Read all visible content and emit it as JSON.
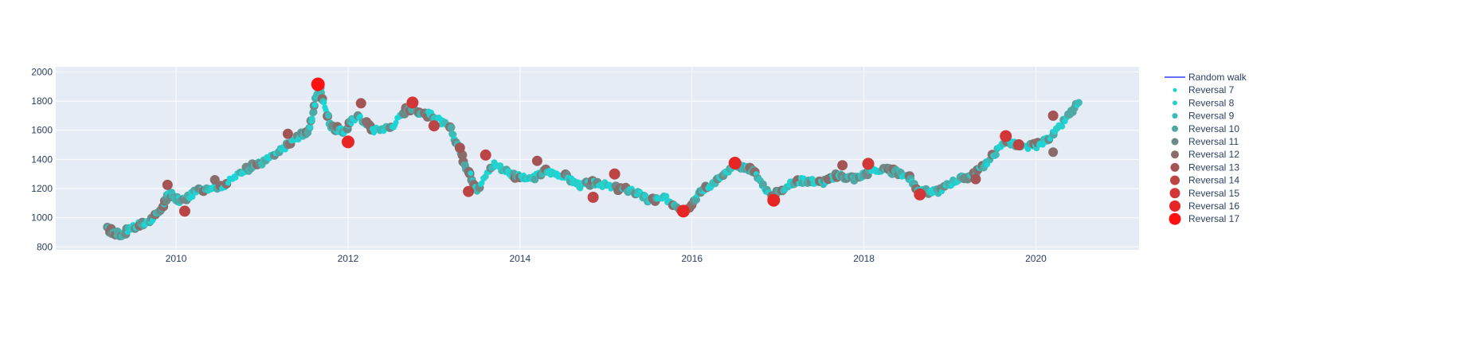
{
  "chart_data": {
    "type": "scatter",
    "title": "",
    "xlabel": "",
    "ylabel": "",
    "x_range_years": [
      2008.6,
      2021.2
    ],
    "ylim": [
      780,
      2035
    ],
    "x_ticks": [
      2010,
      2012,
      2014,
      2016,
      2018,
      2020
    ],
    "x_tick_labels": [
      "2010",
      "2012",
      "2014",
      "2016",
      "2018",
      "2020"
    ],
    "y_ticks": [
      800,
      1000,
      1200,
      1400,
      1600,
      1800,
      2000
    ],
    "y_tick_labels": [
      "800",
      "1000",
      "1200",
      "1400",
      "1600",
      "1800",
      "2000"
    ],
    "grid": true,
    "legend_position": "right",
    "colors": {
      "plot_bg": "#e5ecf6",
      "grid": "#ffffff",
      "line": "#636efa",
      "text": "#2a3f5f"
    },
    "line_series": {
      "name": "Random walk",
      "color": "#636efa",
      "x": [
        2009.2,
        2009.35,
        2009.5,
        2009.65,
        2009.8,
        2009.92,
        2010.05,
        2010.3,
        2010.55,
        2010.8,
        2011.0,
        2011.2,
        2011.4,
        2011.55,
        2011.66,
        2011.8,
        2011.95,
        2012.1,
        2012.3,
        2012.5,
        2012.7,
        2012.85,
        2013.0,
        2013.2,
        2013.35,
        2013.5,
        2013.7,
        2013.9,
        2014.1,
        2014.3,
        2014.5,
        2014.7,
        2014.9,
        2015.1,
        2015.3,
        2015.5,
        2015.7,
        2015.92,
        2016.1,
        2016.3,
        2016.52,
        2016.7,
        2016.92,
        2017.1,
        2017.3,
        2017.5,
        2017.7,
        2017.9,
        2018.1,
        2018.3,
        2018.5,
        2018.65,
        2018.85,
        2019.05,
        2019.25,
        2019.45,
        2019.65,
        2019.85,
        2020.05,
        2020.25,
        2020.5
      ],
      "y": [
        920,
        880,
        940,
        960,
        1030,
        1170,
        1110,
        1200,
        1220,
        1330,
        1380,
        1450,
        1550,
        1600,
        1920,
        1620,
        1590,
        1700,
        1600,
        1620,
        1760,
        1720,
        1700,
        1600,
        1380,
        1200,
        1370,
        1300,
        1260,
        1320,
        1290,
        1220,
        1240,
        1200,
        1190,
        1120,
        1130,
        1050,
        1180,
        1260,
        1360,
        1330,
        1140,
        1220,
        1260,
        1240,
        1290,
        1270,
        1330,
        1320,
        1290,
        1180,
        1180,
        1250,
        1290,
        1390,
        1530,
        1480,
        1500,
        1600,
        1790
      ]
    },
    "series": [
      {
        "name": "Reversal 7",
        "color": "#1bd6d6",
        "size": 7
      },
      {
        "name": "Reversal 8",
        "color": "#28cfcb",
        "size": 8
      },
      {
        "name": "Reversal 9",
        "color": "#3dbbb6",
        "size": 9
      },
      {
        "name": "Reversal 10",
        "color": "#50a8a4",
        "size": 10
      },
      {
        "name": "Reversal 11",
        "color": "#6d8a88",
        "size": 11
      },
      {
        "name": "Reversal 12",
        "color": "#8a6c6a",
        "size": 12
      },
      {
        "name": "Reversal 13",
        "color": "#a45454",
        "size": 13
      },
      {
        "name": "Reversal 14",
        "color": "#bb4444",
        "size": 14
      },
      {
        "name": "Reversal 15",
        "color": "#d23636",
        "size": 15
      },
      {
        "name": "Reversal 16",
        "color": "#e82525",
        "size": 16
      },
      {
        "name": "Reversal 17",
        "color": "#ff1111",
        "size": 17
      }
    ],
    "highlighted_points": [
      {
        "x": 2009.9,
        "y": 1225,
        "series": 13
      },
      {
        "x": 2010.1,
        "y": 1045,
        "series": 14
      },
      {
        "x": 2010.45,
        "y": 1260,
        "series": 12
      },
      {
        "x": 2011.3,
        "y": 1575,
        "series": 13
      },
      {
        "x": 2011.65,
        "y": 1915,
        "series": 17
      },
      {
        "x": 2012.0,
        "y": 1520,
        "series": 16
      },
      {
        "x": 2012.15,
        "y": 1785,
        "series": 13
      },
      {
        "x": 2012.75,
        "y": 1790,
        "series": 15
      },
      {
        "x": 2013.0,
        "y": 1630,
        "series": 14
      },
      {
        "x": 2013.3,
        "y": 1480,
        "series": 13
      },
      {
        "x": 2013.4,
        "y": 1180,
        "series": 14
      },
      {
        "x": 2013.6,
        "y": 1430,
        "series": 14
      },
      {
        "x": 2014.2,
        "y": 1390,
        "series": 13
      },
      {
        "x": 2014.85,
        "y": 1140,
        "series": 14
      },
      {
        "x": 2015.1,
        "y": 1300,
        "series": 14
      },
      {
        "x": 2015.9,
        "y": 1045,
        "series": 16
      },
      {
        "x": 2016.5,
        "y": 1375,
        "series": 16
      },
      {
        "x": 2016.95,
        "y": 1120,
        "series": 16
      },
      {
        "x": 2017.75,
        "y": 1360,
        "series": 13
      },
      {
        "x": 2018.05,
        "y": 1370,
        "series": 15
      },
      {
        "x": 2018.65,
        "y": 1160,
        "series": 15
      },
      {
        "x": 2019.3,
        "y": 1265,
        "series": 13
      },
      {
        "x": 2019.65,
        "y": 1560,
        "series": 15
      },
      {
        "x": 2019.8,
        "y": 1500,
        "series": 14
      },
      {
        "x": 2020.2,
        "y": 1450,
        "series": 12
      },
      {
        "x": 2020.2,
        "y": 1700,
        "series": 13
      }
    ]
  }
}
